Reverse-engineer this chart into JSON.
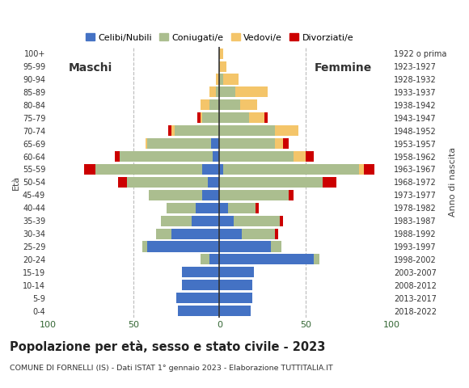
{
  "age_groups": [
    "0-4",
    "5-9",
    "10-14",
    "15-19",
    "20-24",
    "25-29",
    "30-34",
    "35-39",
    "40-44",
    "45-49",
    "50-54",
    "55-59",
    "60-64",
    "65-69",
    "70-74",
    "75-79",
    "80-84",
    "85-89",
    "90-94",
    "95-99",
    "100+"
  ],
  "birth_years": [
    "2018-2022",
    "2013-2017",
    "2008-2012",
    "2003-2007",
    "1998-2002",
    "1993-1997",
    "1988-1992",
    "1983-1987",
    "1978-1982",
    "1973-1977",
    "1968-1972",
    "1963-1967",
    "1958-1962",
    "1953-1957",
    "1948-1952",
    "1943-1947",
    "1938-1942",
    "1933-1937",
    "1928-1932",
    "1923-1927",
    "1922 o prima"
  ],
  "colors": {
    "celibe": "#4472C4",
    "coniugato": "#ABBE8F",
    "vedovo": "#F4C56A",
    "divorziato": "#CC0000"
  },
  "maschi": {
    "celibe": [
      24,
      25,
      22,
      22,
      6,
      42,
      28,
      16,
      14,
      10,
      7,
      10,
      4,
      5,
      0,
      0,
      0,
      0,
      0,
      0,
      0
    ],
    "coniugato": [
      0,
      0,
      0,
      0,
      5,
      3,
      9,
      18,
      17,
      31,
      47,
      62,
      54,
      37,
      26,
      10,
      6,
      2,
      0,
      0,
      0
    ],
    "vedovo": [
      0,
      0,
      0,
      0,
      0,
      0,
      0,
      0,
      0,
      0,
      0,
      0,
      0,
      1,
      2,
      1,
      5,
      4,
      2,
      0,
      0
    ],
    "divorziato": [
      0,
      0,
      0,
      0,
      0,
      0,
      0,
      0,
      0,
      0,
      5,
      7,
      3,
      0,
      2,
      2,
      0,
      0,
      0,
      0,
      0
    ]
  },
  "femmine": {
    "celibe": [
      18,
      19,
      19,
      20,
      55,
      30,
      13,
      8,
      5,
      0,
      0,
      2,
      0,
      0,
      0,
      0,
      0,
      0,
      0,
      0,
      0
    ],
    "coniugato": [
      0,
      0,
      0,
      0,
      3,
      6,
      19,
      27,
      16,
      40,
      60,
      79,
      43,
      32,
      32,
      17,
      12,
      9,
      2,
      0,
      0
    ],
    "vedovo": [
      0,
      0,
      0,
      0,
      0,
      0,
      0,
      0,
      0,
      0,
      0,
      3,
      7,
      5,
      14,
      9,
      10,
      19,
      9,
      4,
      2
    ],
    "divorziato": [
      0,
      0,
      0,
      0,
      0,
      0,
      2,
      2,
      2,
      3,
      8,
      6,
      5,
      3,
      0,
      2,
      0,
      0,
      0,
      0,
      0
    ]
  },
  "xlim": 100,
  "title": "Popolazione per età, sesso e stato civile - 2023",
  "subtitle": "COMUNE DI FORNELLI (IS) - Dati ISTAT 1° gennaio 2023 - Elaborazione TUTTITALIA.IT",
  "xlabel_left": "Maschi",
  "xlabel_right": "Femmine",
  "ylabel_left": "Età",
  "ylabel_right": "Anno di nascita",
  "legend_labels": [
    "Celibi/Nubili",
    "Coniugati/e",
    "Vedovi/e",
    "Divorziati/e"
  ],
  "background_color": "#FFFFFF",
  "grid_color": "#BBBBBB"
}
